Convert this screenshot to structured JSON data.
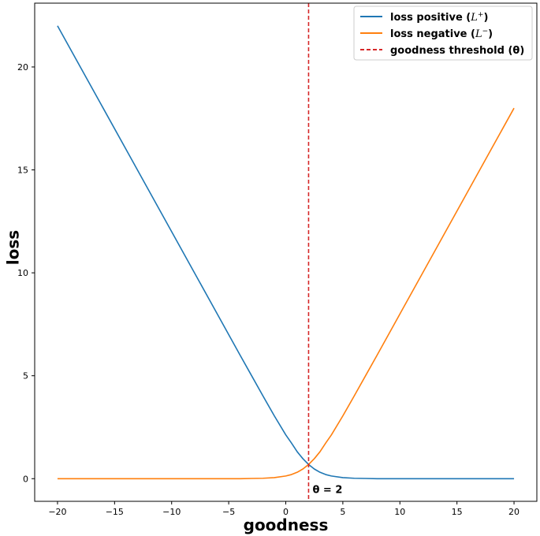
{
  "chart_data": {
    "type": "line",
    "title": "",
    "xlabel": "goodness",
    "ylabel": "loss",
    "xlim": [
      -22,
      22
    ],
    "ylim": [
      -1.1,
      23.1
    ],
    "xticks": [
      -20,
      -15,
      -10,
      -5,
      0,
      5,
      10,
      15,
      20
    ],
    "yticks": [
      0,
      5,
      10,
      15,
      20
    ],
    "grid": false,
    "legend_position": "top-right",
    "x": [
      -20,
      -18,
      -16,
      -14,
      -12,
      -10,
      -8,
      -6,
      -4,
      -3,
      -2,
      -1,
      0,
      0.5,
      1,
      1.5,
      2,
      2.5,
      3,
      3.5,
      4,
      5,
      6,
      7,
      8,
      10,
      12,
      14,
      16,
      18,
      20
    ],
    "series": [
      {
        "name": "loss positive (",
        "name_math": "L",
        "name_sup": "+",
        "name_close": ")",
        "color": "#1f77b4",
        "values": [
          22.0,
          20.0,
          18.0,
          16.0,
          14.0,
          12.0,
          10.0,
          8.0,
          6.0,
          5.01,
          4.02,
          3.05,
          2.13,
          1.73,
          1.31,
          0.97,
          0.69,
          0.47,
          0.31,
          0.2,
          0.13,
          0.05,
          0.02,
          0.01,
          0.0,
          0.0,
          0.0,
          0.0,
          0.0,
          0.0,
          0.0
        ]
      },
      {
        "name": "loss negative (",
        "name_math": "L",
        "name_sup": "−",
        "name_close": ")",
        "color": "#ff7f0e",
        "values": [
          0.0,
          0.0,
          0.0,
          0.0,
          0.0,
          0.0,
          0.0,
          0.0,
          0.0,
          0.01,
          0.02,
          0.05,
          0.13,
          0.2,
          0.31,
          0.47,
          0.69,
          0.97,
          1.31,
          1.73,
          2.13,
          3.05,
          4.02,
          5.01,
          6.0,
          8.0,
          10.0,
          12.0,
          14.0,
          16.0,
          18.0
        ]
      }
    ],
    "threshold": {
      "name": "goodness threshold (θ)",
      "x": 2,
      "color": "#d62728",
      "label": "θ = 2"
    }
  }
}
